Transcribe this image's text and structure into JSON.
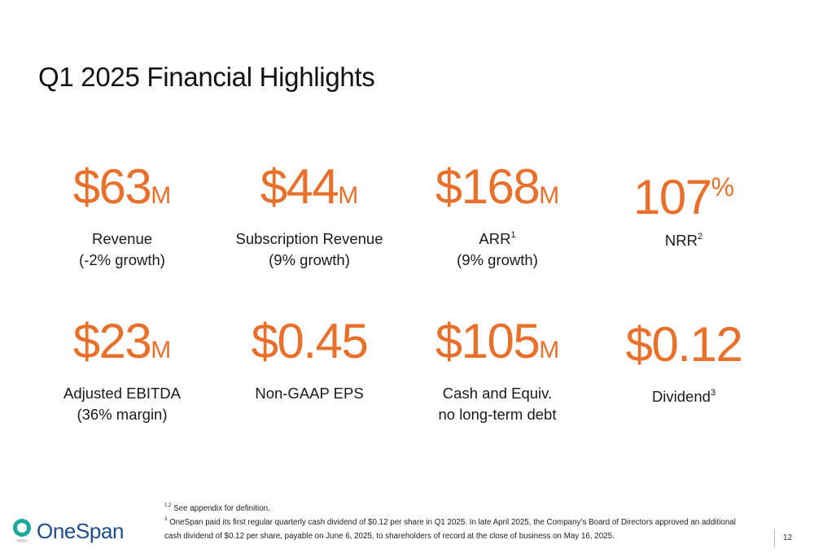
{
  "slide": {
    "title": "Q1 2025 Financial Highlights",
    "page_number": "12"
  },
  "metrics": [
    {
      "value": "$63",
      "unit": "M",
      "label": "Revenue",
      "sup": "",
      "sublabel": "(-2% growth)"
    },
    {
      "value": "$44",
      "unit": "M",
      "label": "Subscription Revenue",
      "sup": "",
      "sublabel": "(9% growth)"
    },
    {
      "value": "$168",
      "unit": "M",
      "label": "ARR",
      "sup": "1",
      "sublabel": "(9% growth)"
    },
    {
      "value": "107",
      "unit": "%",
      "label": "NRR",
      "sup": "2",
      "sublabel": ""
    },
    {
      "value": "$23",
      "unit": "M",
      "label": "Adjusted EBITDA",
      "sup": "",
      "sublabel": "(36% margin)"
    },
    {
      "value": "$0.45",
      "unit": "",
      "label": "Non-GAAP EPS",
      "sup": "",
      "sublabel": ""
    },
    {
      "value": "$105",
      "unit": "M",
      "label": "Cash and Equiv.",
      "sup": "",
      "sublabel": "no long-term debt"
    },
    {
      "value": "$0.12",
      "unit": "",
      "label": "Dividend",
      "sup": "3",
      "sublabel": ""
    }
  ],
  "footnotes": [
    {
      "marker": "1,2",
      "text": "See appendix for definition."
    },
    {
      "marker": "3",
      "text": "OneSpan paid its first regular quarterly cash dividend of $0.12 per share in Q1 2025. In late April 2025, the Company’s Board of Directors approved an additional cash dividend of $0.12 per share, payable on June 6, 2025, to shareholders of record at the close of business on May 16, 2025."
    }
  ],
  "logo": {
    "text": "OneSpan",
    "icon": "onespan-logo-icon",
    "colors": {
      "teal": "#1aa89a",
      "blue": "#1f4e8c"
    }
  },
  "colors": {
    "accent": "#e8702a"
  }
}
